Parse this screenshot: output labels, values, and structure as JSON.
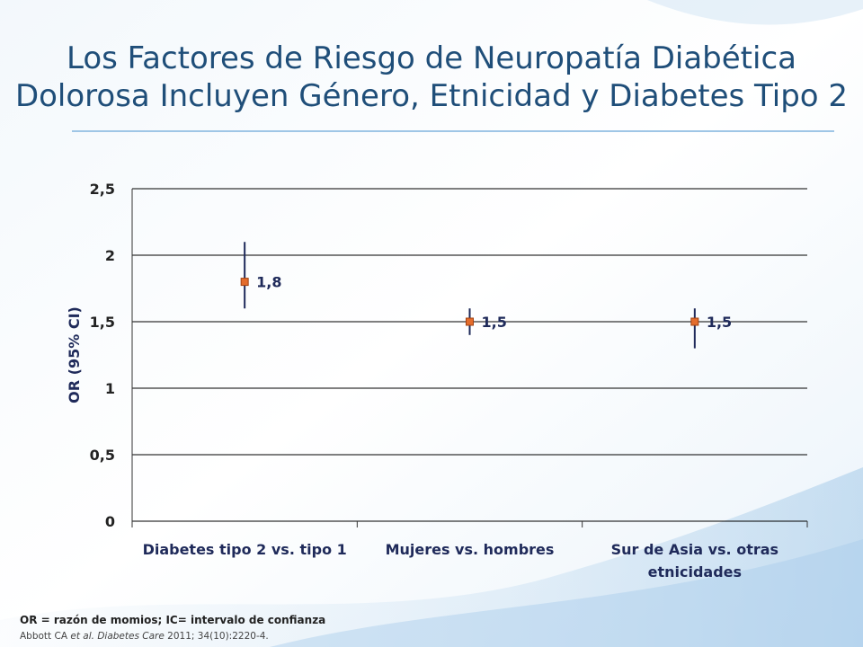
{
  "slide": {
    "title_line1": "Los Factores de Riesgo de Neuropatía Diabética",
    "title_line2": "Dolorosa Incluyen Género, Etnicidad y Diabetes Tipo 2",
    "footnote": "OR = razón de momios; IC= intervalo de confianza",
    "citation": {
      "authors": "Abbott CA",
      "etal": "et al.",
      "journal": "Diabetes Care",
      "details": "2011; 34(10):2220-4."
    }
  },
  "colors": {
    "title": "#1f4e79",
    "marker_fill": "#e46c2c",
    "marker_stroke": "#a04010",
    "error_bar": "#1f2a5a",
    "gridline": "#000000",
    "label_text": "#1f2a5a"
  },
  "chart_data": {
    "type": "scatter",
    "categories": [
      "Diabetes tipo 2 vs. tipo 1",
      "Mujeres vs. hombres",
      "Sur de Asia vs. otras etnicidades"
    ],
    "category_label_lines": [
      [
        "Diabetes tipo 2 vs. tipo 1"
      ],
      [
        "Mujeres vs. hombres"
      ],
      [
        "Sur de Asia vs. otras",
        "etnicidades"
      ]
    ],
    "series": [
      {
        "values": [
          1.8,
          1.5,
          1.5
        ],
        "ci_low": [
          1.6,
          1.4,
          1.3
        ],
        "ci_high": [
          2.1,
          1.6,
          1.6
        ],
        "data_labels": [
          "1,8",
          "1,5",
          "1,5"
        ]
      }
    ],
    "ylabel": "OR (95% CI)",
    "xlabel": "",
    "ylim": [
      0,
      2.5
    ],
    "yticks": [
      0,
      0.5,
      1,
      1.5,
      2,
      2.5
    ],
    "ytick_labels": [
      "0",
      "0,5",
      "1",
      "1,5",
      "2",
      "2,5"
    ],
    "grid": true,
    "legend": false
  }
}
